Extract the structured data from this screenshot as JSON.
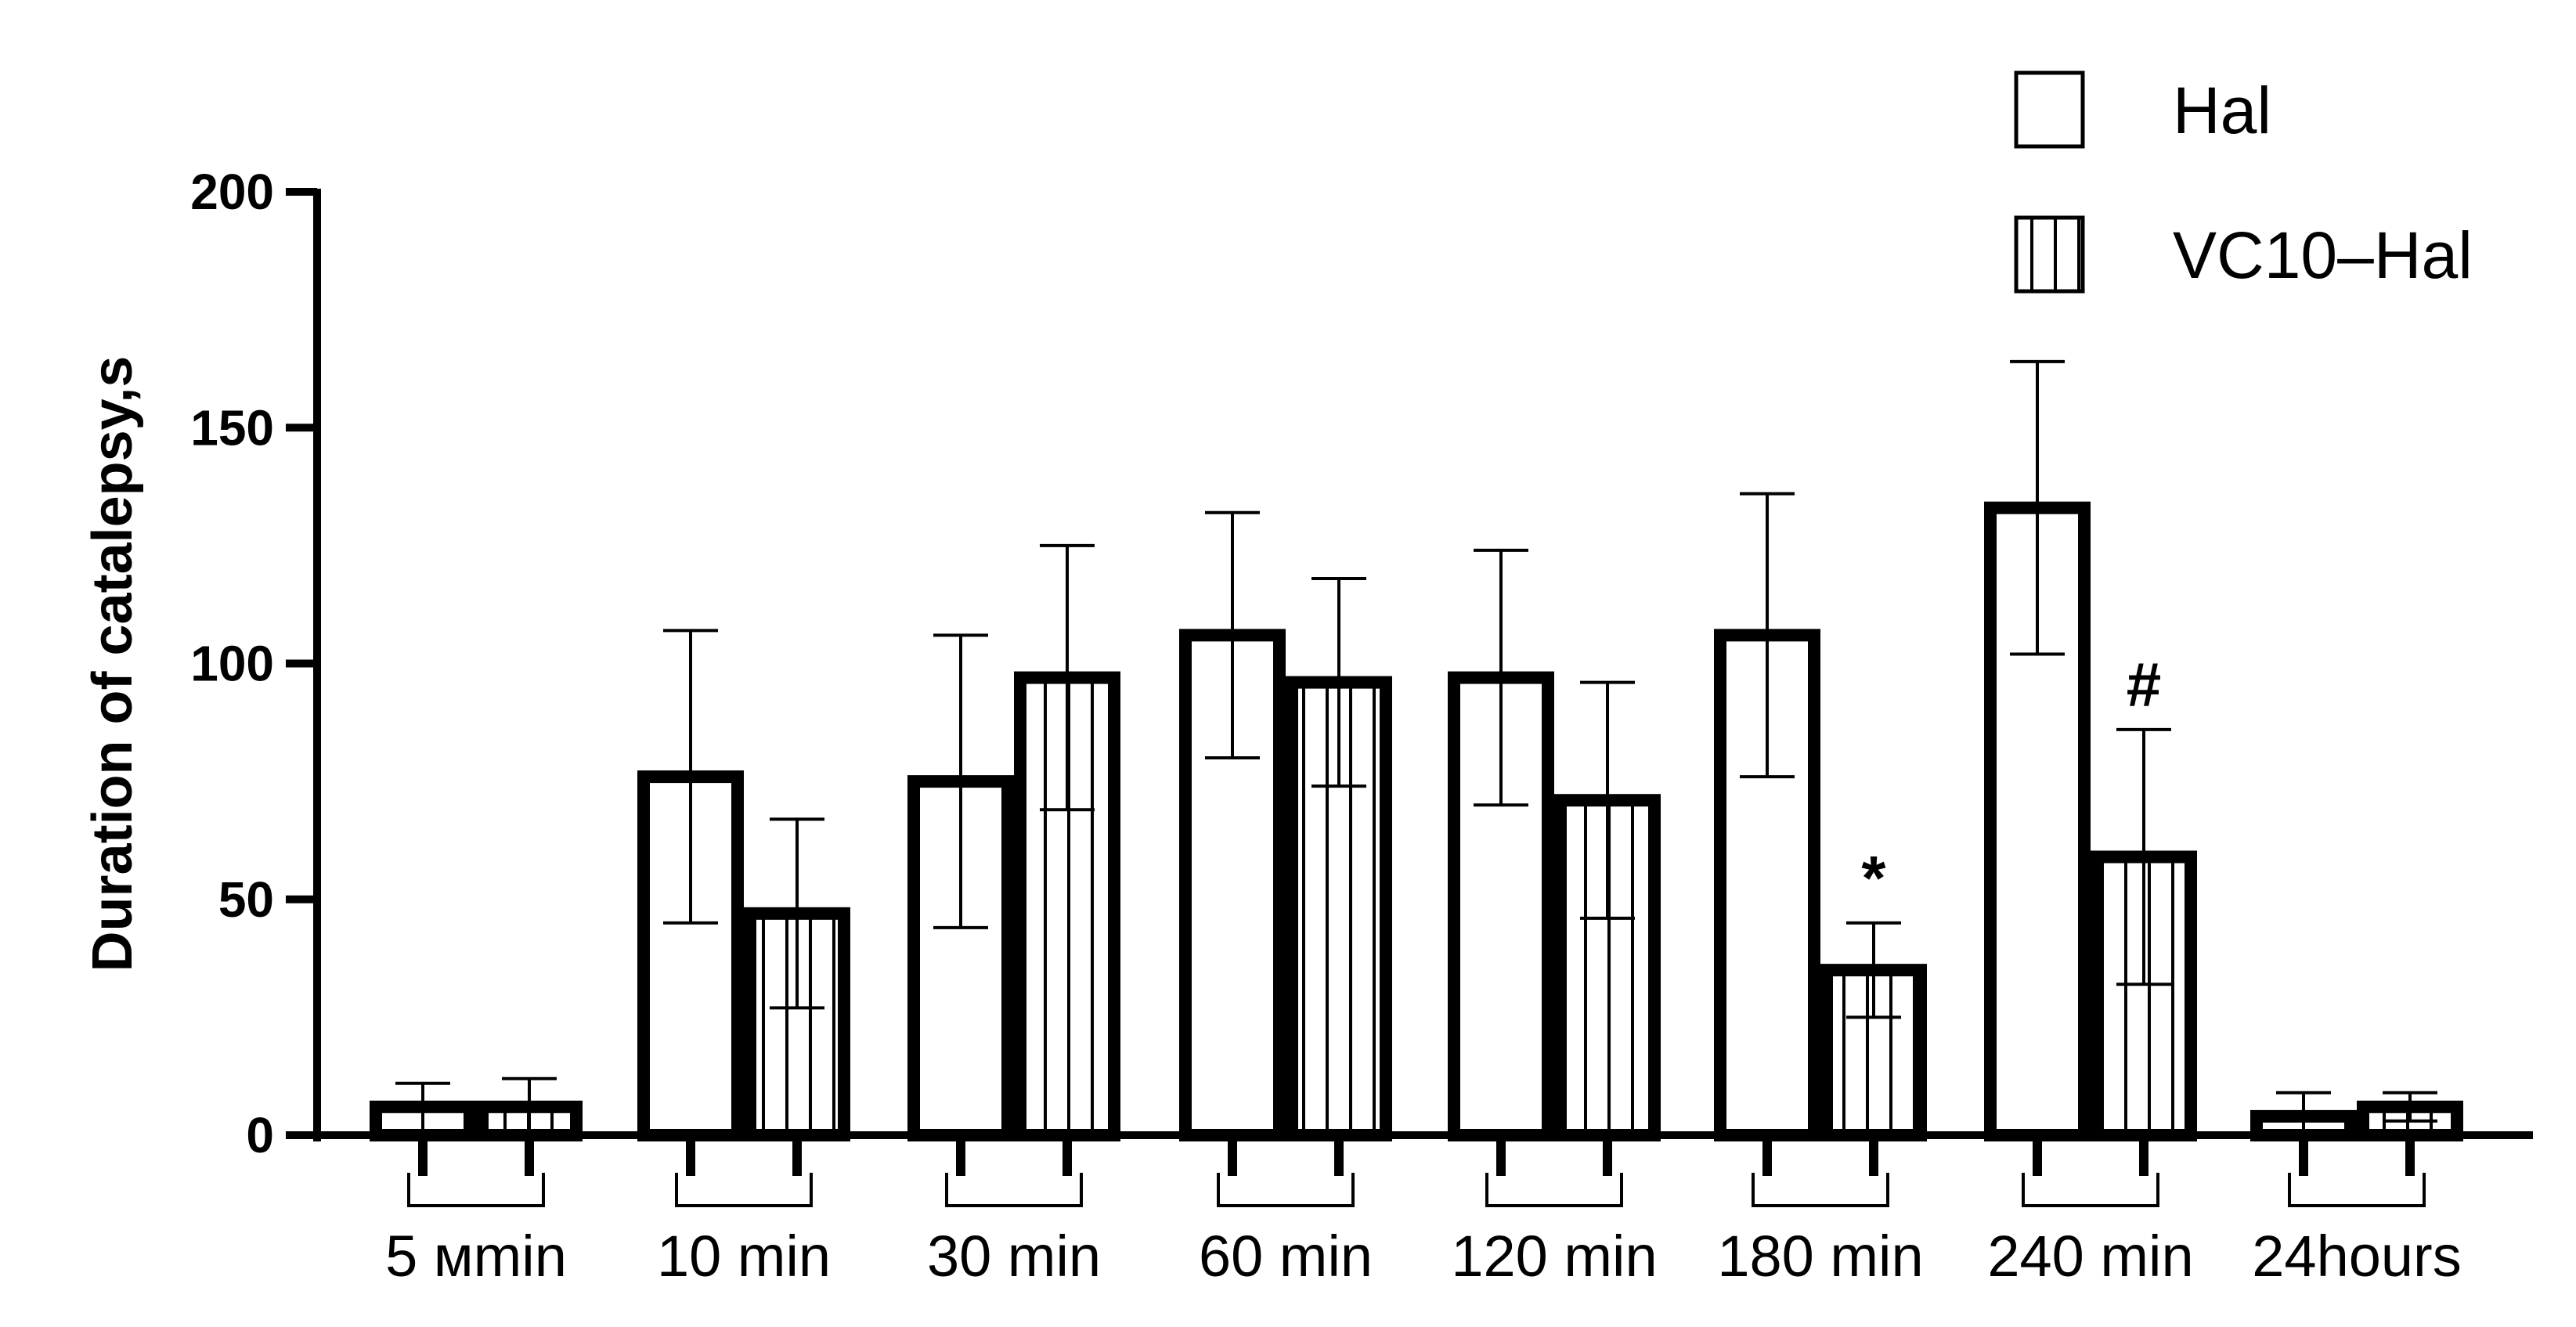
{
  "chart_data": {
    "type": "bar",
    "title": "",
    "xlabel": "",
    "ylabel": "Duration of catalepsy,s",
    "ylim": [
      0,
      200
    ],
    "yticks": [
      0,
      50,
      100,
      150,
      200
    ],
    "categories": [
      "5 мmin",
      "10 min",
      "30 min",
      "60 min",
      "120 min",
      "180 min",
      "240 min",
      "24hours"
    ],
    "series": [
      {
        "name": "Hal",
        "pattern": "open",
        "values": [
          6,
          76,
          75,
          106,
          97,
          106,
          133,
          4
        ],
        "errors": [
          5,
          31,
          31,
          26,
          27,
          30,
          31,
          5
        ]
      },
      {
        "name": "VC10–Hal",
        "pattern": "vertical-hatch",
        "values": [
          6,
          47,
          97,
          96,
          71,
          35,
          59,
          6
        ],
        "errors": [
          6,
          20,
          28,
          22,
          25,
          10,
          27,
          3
        ]
      }
    ],
    "annotations": [
      {
        "text": "*",
        "series": 1,
        "category": 5
      },
      {
        "text": "#",
        "series": 1,
        "category": 6
      }
    ],
    "legend_position": "top-right",
    "grid": false
  },
  "colors": {
    "ink": "#000000",
    "background": "#ffffff"
  }
}
